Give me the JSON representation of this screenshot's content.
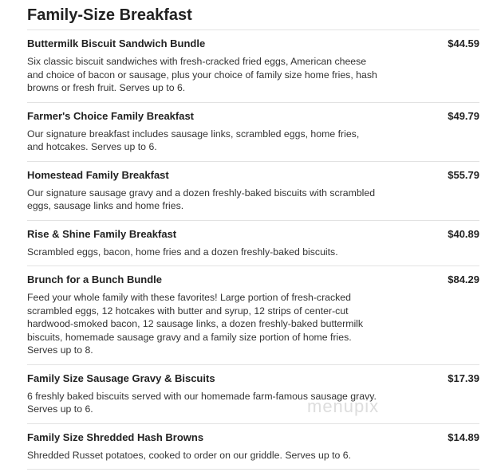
{
  "section_title": "Family-Size Breakfast",
  "items": [
    {
      "name": "Buttermilk Biscuit Sandwich Bundle",
      "price": "$44.59",
      "desc": "Six classic biscuit sandwiches with fresh-cracked fried eggs, American cheese and choice of bacon or sausage, plus your choice of family size home fries, hash browns or fresh fruit. Serves up to 6."
    },
    {
      "name": "Farmer's Choice Family Breakfast",
      "price": "$49.79",
      "desc": "Our signature breakfast includes sausage links, scrambled eggs, home fries, and hotcakes. Serves up to 6."
    },
    {
      "name": "Homestead Family Breakfast",
      "price": "$55.79",
      "desc": "Our signature sausage gravy and a dozen freshly-baked biscuits with scrambled eggs, sausage links and home fries."
    },
    {
      "name": "Rise & Shine Family Breakfast",
      "price": "$40.89",
      "desc": "Scrambled eggs, bacon, home fries and a dozen freshly-baked biscuits."
    },
    {
      "name": "Brunch for a Bunch Bundle",
      "price": "$84.29",
      "desc": "Feed your whole family with these favorites! Large portion of fresh-cracked scrambled eggs, 12 hotcakes with butter and syrup, 12 strips of center-cut hardwood-smoked bacon, 12 sausage links, a dozen freshly-baked buttermilk biscuits, homemade sausage gravy and a family size portion of home fries. Serves up to 8."
    },
    {
      "name": "Family Size Sausage Gravy & Biscuits",
      "price": "$17.39",
      "desc": "6 freshly baked biscuits served with our homemade farm-famous sausage gravy. Serves up to 6."
    },
    {
      "name": "Family Size Shredded Hash Browns",
      "price": "$14.89",
      "desc": "Shredded Russet potatoes, cooked to order on our griddle. Serves up to 6."
    }
  ],
  "watermark": "menupix"
}
